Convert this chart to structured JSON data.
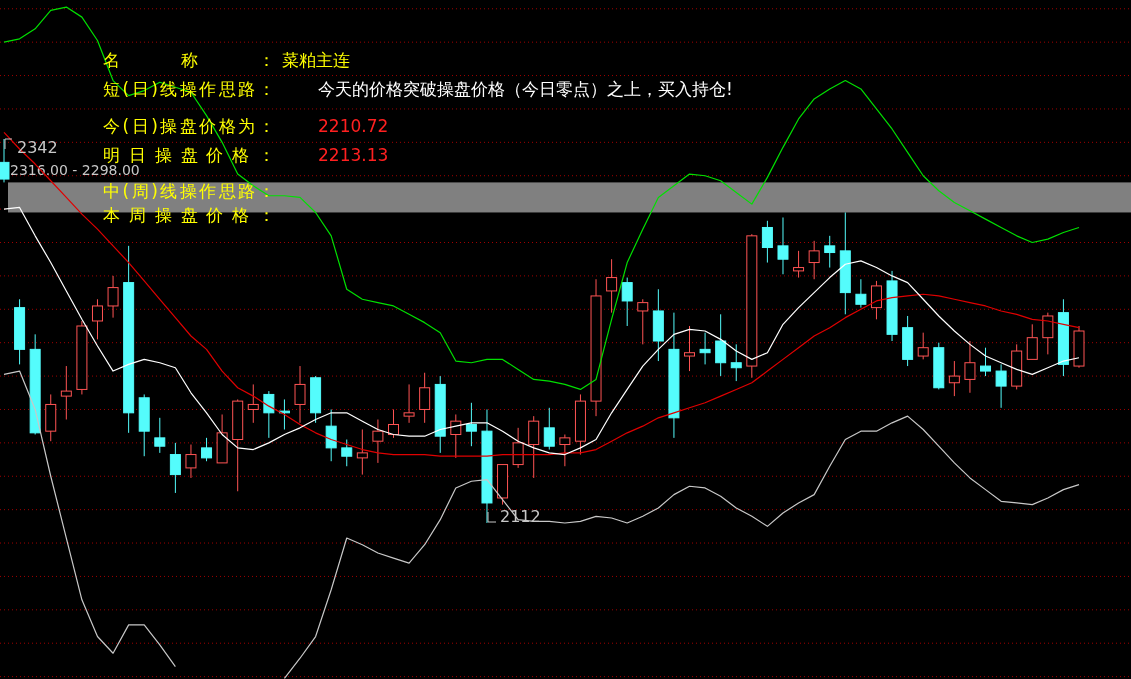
{
  "chart_data": {
    "type": "candlestick",
    "categories": [
      null,
      null,
      null,
      null,
      null,
      null,
      null,
      null,
      null,
      null,
      null,
      null,
      null,
      null,
      null,
      null,
      null,
      null,
      null,
      null,
      null,
      null,
      null,
      null,
      null,
      null,
      null,
      null,
      null,
      null,
      null,
      null,
      null,
      null,
      null,
      null,
      null,
      null,
      null,
      null,
      null,
      null,
      null,
      null,
      null,
      null,
      null,
      null,
      null,
      null,
      null,
      null,
      null,
      null,
      null,
      null,
      null,
      null,
      null,
      null,
      null,
      null,
      null,
      null,
      null,
      null,
      null,
      null,
      null,
      null
    ],
    "ohlc": [
      [
        2328,
        2342,
        2316,
        2318
      ],
      [
        2241,
        2246,
        2207,
        2216
      ],
      [
        2216,
        2225,
        2165,
        2166
      ],
      [
        2167,
        2189,
        2161,
        2183
      ],
      [
        2188,
        2206,
        2174,
        2191
      ],
      [
        2192,
        2233,
        2189,
        2230
      ],
      [
        2233,
        2246,
        2222,
        2242
      ],
      [
        2242,
        2260,
        2235,
        2253
      ],
      [
        2256,
        2278,
        2166,
        2178
      ],
      [
        2187,
        2189,
        2152,
        2167
      ],
      [
        2163,
        2175,
        2154,
        2158
      ],
      [
        2153,
        2160,
        2130,
        2141
      ],
      [
        2145,
        2159,
        2139,
        2153
      ],
      [
        2157,
        2163,
        2149,
        2151
      ],
      [
        2148,
        2177,
        2148,
        2166
      ],
      [
        2162,
        2186,
        2131,
        2185
      ],
      [
        2180,
        2195,
        2172,
        2183
      ],
      [
        2189,
        2191,
        2163,
        2178
      ],
      [
        2179,
        2186,
        2168,
        2178
      ],
      [
        2183,
        2206,
        2172,
        2195
      ],
      [
        2199,
        2200,
        2172,
        2178
      ],
      [
        2170,
        2180,
        2149,
        2157
      ],
      [
        2157,
        2162,
        2146,
        2152
      ],
      [
        2151,
        2168,
        2141,
        2154
      ],
      [
        2161,
        2174,
        2148,
        2167
      ],
      [
        2165,
        2180,
        2163,
        2171
      ],
      [
        2176,
        2195,
        2172,
        2178
      ],
      [
        2180,
        2202,
        2172,
        2193
      ],
      [
        2195,
        2200,
        2154,
        2164
      ],
      [
        2165,
        2177,
        2151,
        2173
      ],
      [
        2171,
        2184,
        2158,
        2167
      ],
      [
        2167,
        2180,
        2112,
        2124
      ],
      [
        2127,
        2147,
        2123,
        2147
      ],
      [
        2147,
        2169,
        2145,
        2160
      ],
      [
        2159,
        2176,
        2139,
        2173
      ],
      [
        2169,
        2181,
        2156,
        2158
      ],
      [
        2159,
        2165,
        2146,
        2163
      ],
      [
        2161,
        2189,
        2153,
        2185
      ],
      [
        2185,
        2258,
        2176,
        2248
      ],
      [
        2251,
        2270,
        2238,
        2259
      ],
      [
        2256,
        2259,
        2230,
        2245
      ],
      [
        2239,
        2246,
        2219,
        2244
      ],
      [
        2239,
        2252,
        2209,
        2221
      ],
      [
        2216,
        2238,
        2163,
        2175
      ],
      [
        2212,
        2230,
        2203,
        2214
      ],
      [
        2216,
        2226,
        2207,
        2214
      ],
      [
        2221,
        2237,
        2200,
        2208
      ],
      [
        2208,
        2219,
        2197,
        2205
      ],
      [
        2206,
        2285,
        2199,
        2284
      ],
      [
        2289,
        2293,
        2268,
        2277
      ],
      [
        2278,
        2295,
        2261,
        2270
      ],
      [
        2263,
        2275,
        2259,
        2265
      ],
      [
        2268,
        2281,
        2258,
        2275
      ],
      [
        2278,
        2284,
        2265,
        2274
      ],
      [
        2275,
        2298,
        2237,
        2250
      ],
      [
        2249,
        2258,
        2241,
        2243
      ],
      [
        2241,
        2257,
        2234,
        2254
      ],
      [
        2257,
        2263,
        2221,
        2225
      ],
      [
        2229,
        2236,
        2206,
        2210
      ],
      [
        2212,
        2226,
        2210,
        2217
      ],
      [
        2217,
        2220,
        2192,
        2193
      ],
      [
        2196,
        2209,
        2188,
        2200
      ],
      [
        2198,
        2221,
        2190,
        2208
      ],
      [
        2206,
        2217,
        2200,
        2203
      ],
      [
        2203,
        2207,
        2181,
        2194
      ],
      [
        2194,
        2219,
        2192,
        2215
      ],
      [
        2210,
        2231,
        2210,
        2223
      ],
      [
        2223,
        2238,
        2213,
        2236
      ],
      [
        2238,
        2246,
        2200,
        2207
      ],
      [
        2206,
        2230,
        2205,
        2227
      ]
    ],
    "colors": [
      "#54fcfc",
      "#54fcfc",
      "#54fcfc",
      "#ff5454",
      "#ff5454",
      "#ff5454",
      "#ff5454",
      "#ff5454",
      "#54fcfc",
      "#54fcfc",
      "#54fcfc",
      "#54fcfc",
      "#ff5454",
      "#54fcfc",
      "#ff5454",
      "#ff5454",
      "#ff5454",
      "#54fcfc",
      "#54fcfc",
      "#ff5454",
      "#54fcfc",
      "#54fcfc",
      "#54fcfc",
      "#ff5454",
      "#ff5454",
      "#ff5454",
      "#ff5454",
      "#ff5454",
      "#54fcfc",
      "#ff5454",
      "#54fcfc",
      "#54fcfc",
      "#ff5454",
      "#ff5454",
      "#ff5454",
      "#54fcfc",
      "#ff5454",
      "#ff5454",
      "#ff5454",
      "#ff5454",
      "#54fcfc",
      "#ff5454",
      "#54fcfc",
      "#54fcfc",
      "#ff5454",
      "#54fcfc",
      "#54fcfc",
      "#54fcfc",
      "#ff5454",
      "#54fcfc",
      "#54fcfc",
      "#ff5454",
      "#ff5454",
      "#54fcfc",
      "#54fcfc",
      "#54fcfc",
      "#ff5454",
      "#54fcfc",
      "#54fcfc",
      "#ff5454",
      "#54fcfc",
      "#ff5454",
      "#ff5454",
      "#54fcfc",
      "#54fcfc",
      "#ff5454",
      "#ff5454",
      "#ff5454",
      "#54fcfc",
      "#ff5454"
    ],
    "series": [
      {
        "type": "line",
        "color": "#e00000",
        "values": [
          2346,
          2336,
          2327,
          2317,
          2307,
          2297,
          2288,
          2278,
          2268,
          2257,
          2246,
          2235,
          2224,
          2216,
          2203,
          2193,
          2188,
          2182,
          2177,
          2171,
          2166,
          2162,
          2159,
          2156,
          2154,
          2153,
          2153,
          2153,
          2152,
          2152,
          2152,
          2152,
          2153,
          2153,
          2153,
          2153,
          2154,
          2154,
          2156,
          2161,
          2166,
          2170,
          2175,
          2178,
          2181,
          2184,
          2188,
          2192,
          2196,
          2203,
          2210,
          2217,
          2224,
          2229,
          2235,
          2240,
          2245,
          2247,
          2248,
          2249,
          2248,
          2246,
          2244,
          2242,
          2239,
          2237,
          2234,
          2233,
          2231,
          2229
        ]
      },
      {
        "type": "line",
        "color": "#ffffff",
        "values": [
          2300,
          2301,
          2284,
          2268,
          2251,
          2234,
          2218,
          2203,
          2207,
          2210,
          2208,
          2205,
          2190,
          2178,
          2165,
          2157,
          2156,
          2160,
          2165,
          2169,
          2174,
          2178,
          2178,
          2173,
          2168,
          2165,
          2164,
          2164,
          2168,
          2170,
          2172,
          2172,
          2167,
          2161,
          2157,
          2154,
          2153,
          2157,
          2162,
          2178,
          2192,
          2206,
          2216,
          2225,
          2228,
          2227,
          2222,
          2215,
          2210,
          2214,
          2231,
          2241,
          2250,
          2259,
          2267,
          2269,
          2265,
          2260,
          2256,
          2246,
          2236,
          2227,
          2219,
          2212,
          2208,
          2204,
          2201,
          2205,
          2209,
          2211
        ]
      },
      {
        "type": "line",
        "color": "#00e000",
        "values": [
          2400,
          2402,
          2408,
          2419,
          2421,
          2415,
          2401,
          2377,
          2368,
          2371,
          2376,
          2373,
          2370,
          2356,
          2340,
          2321,
          2314,
          2308,
          2308,
          2307,
          2298,
          2284,
          2252,
          2246,
          2244,
          2242,
          2237,
          2232,
          2226,
          2209,
          2208,
          2210,
          2210,
          2204,
          2198,
          2197,
          2195,
          2192,
          2198,
          2234,
          2268,
          2288,
          2307,
          2314,
          2321,
          2320,
          2317,
          2310,
          2303,
          2319,
          2337,
          2354,
          2366,
          2372,
          2377,
          2372,
          2360,
          2348,
          2334,
          2320,
          2311,
          2304,
          2299,
          2294,
          2289,
          2284,
          2280,
          2282,
          2286,
          2289
        ]
      },
      {
        "type": "line",
        "color": "#c8c8c8",
        "values": [
          2201,
          2203,
          2180,
          2140,
          2103,
          2066,
          2044,
          2034,
          2051,
          2051,
          2039,
          2026,
          null,
          null,
          null,
          null,
          null,
          null,
          2019,
          2031,
          2044,
          2072,
          2103,
          2099,
          2094,
          2091,
          2088,
          2099,
          2114,
          2133,
          2137,
          2138,
          2126,
          2114,
          2113,
          2113,
          2112,
          2113,
          2116,
          2115,
          2112,
          2116,
          2121,
          2129,
          2134,
          2133,
          2128,
          2121,
          2116,
          2110,
          2118,
          2124,
          2129,
          2146,
          2162,
          2167,
          2167,
          2172,
          2176,
          2168,
          2158,
          2148,
          2139,
          2132,
          2125,
          2124,
          2123,
          2127,
          2132,
          2135
        ]
      }
    ],
    "yticks": [
      {
        "value": 2020,
        "label": null
      },
      {
        "value": 2040,
        "label": null
      },
      {
        "value": 2060,
        "label": null
      },
      {
        "value": 2080,
        "label": null
      },
      {
        "value": 2100,
        "label": null
      },
      {
        "value": 2120,
        "label": null
      },
      {
        "value": 2140,
        "label": null
      },
      {
        "value": 2160,
        "label": null
      },
      {
        "value": 2180,
        "label": null
      },
      {
        "value": 2200,
        "label": null
      },
      {
        "value": 2220,
        "label": null
      },
      {
        "value": 2240,
        "label": null
      },
      {
        "value": 2260,
        "label": null
      },
      {
        "value": 2280,
        "label": null
      },
      {
        "value": 2300,
        "label": null
      },
      {
        "value": 2320,
        "label": null
      },
      {
        "value": 2340,
        "label": null
      },
      {
        "value": 2360,
        "label": null
      },
      {
        "value": 2380,
        "label": null
      },
      {
        "value": 2400,
        "label": null
      },
      {
        "value": 2420,
        "label": null
      }
    ],
    "grid": "y",
    "bands": [
      {
        "axis": "y",
        "from": 2298,
        "to": 2316,
        "label": "2316.00 - 2298.00",
        "color": "#808080"
      }
    ],
    "annotations": [
      "名称：",
      "菜粕主连",
      "短(日)线操作思路：",
      "今天的价格突破操盘价格（今日零点）之上，买入持仓!",
      "今(日)操盘价格为：",
      "2210.72",
      "明日操盘价格：",
      "2213.13",
      "中(周)线操作思路：",
      "本周操盘价格：",
      "2342",
      "2112"
    ]
  }
}
